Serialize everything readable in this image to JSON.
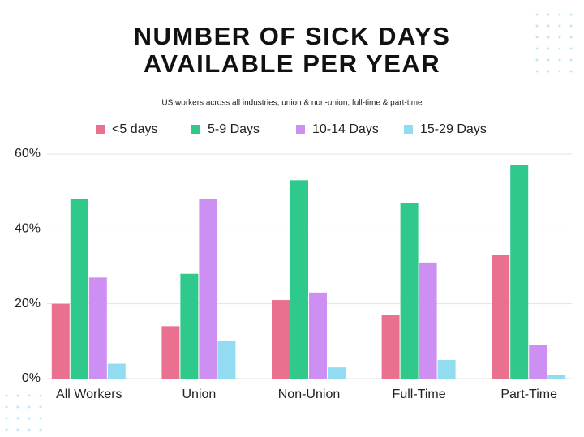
{
  "chart_data": {
    "type": "bar",
    "title": "NUMBER OF SICK DAYS\nAVAILABLE PER YEAR",
    "subtitle": "US workers across all industries, union & non-union, full-time & part-time",
    "categories": [
      "All Workers",
      "Union",
      "Non-Union",
      "Full-Time",
      "Part-Time"
    ],
    "series": [
      {
        "name": "<5 days",
        "color": "#e9718f",
        "values": [
          20,
          14,
          21,
          17,
          33
        ]
      },
      {
        "name": "5-9 Days",
        "color": "#2fc98b",
        "values": [
          48,
          28,
          53,
          47,
          57
        ]
      },
      {
        "name": "10-14 Days",
        "color": "#cd8ff1",
        "values": [
          27,
          48,
          23,
          31,
          9
        ]
      },
      {
        "name": "15-29 Days",
        "color": "#92dcf2",
        "values": [
          4,
          10,
          3,
          5,
          1
        ]
      }
    ],
    "ylim": [
      0,
      60
    ],
    "yticks": [
      {
        "value": 0,
        "label": "0%"
      },
      {
        "value": 20,
        "label": "20%"
      },
      {
        "value": 40,
        "label": "40%"
      },
      {
        "value": 60,
        "label": "60%"
      }
    ],
    "grid": true
  }
}
